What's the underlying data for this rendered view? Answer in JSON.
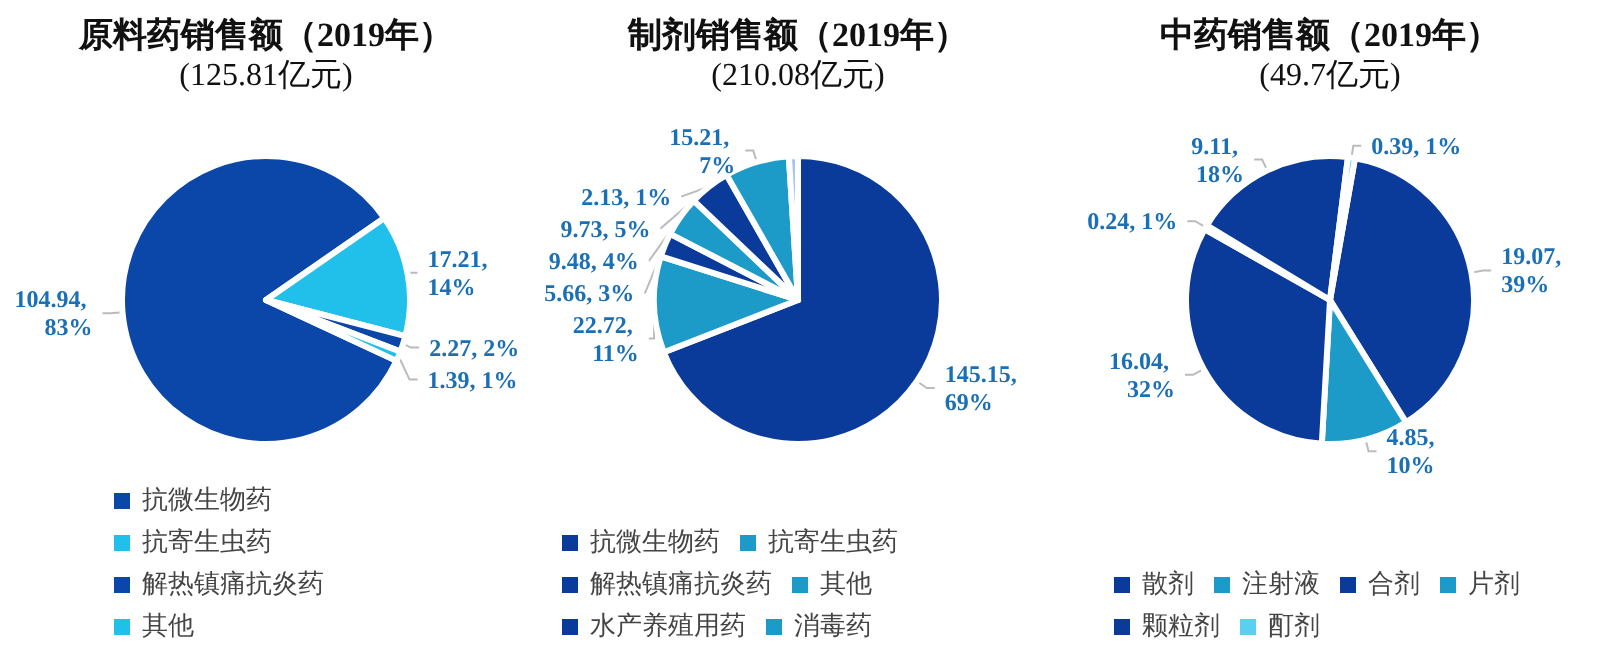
{
  "chart_data": [
    {
      "type": "pie",
      "title": "原料药销售额（2019年）",
      "subtitle": "(125.81亿元)",
      "categories": [
        "抗微生物药",
        "抗寄生虫药",
        "解热镇痛抗炎药",
        "其他"
      ],
      "values": [
        104.94,
        17.21,
        2.27,
        1.39
      ],
      "colors": [
        "#0b47a8",
        "#21c0ea",
        "#0b47a8",
        "#21c0ea"
      ],
      "value_labels": [
        "104.94, 83%",
        "17.21, 14%",
        "2.27, 2%",
        "1.39, 1%"
      ],
      "legend": "bottom"
    },
    {
      "type": "pie",
      "title": "制剂销售额（2019年）",
      "subtitle": "(210.08亿元)",
      "categories": [
        "抗微生物药",
        "抗寄生虫药",
        "解热镇痛抗炎药",
        "其他",
        "水产养殖用药",
        "消毒药",
        null
      ],
      "values": [
        145.15,
        22.72,
        5.66,
        9.48,
        9.73,
        15.21,
        2.13
      ],
      "colors": [
        "#0a3a9a",
        "#1d9bc8",
        "#0a3a9a",
        "#1d9bc8",
        "#0a3a9a",
        "#1d9bc8",
        "#a9c4ea"
      ],
      "value_labels": [
        "145.15, 69%",
        "22.72, 11%",
        "5.66, 3%",
        "9.48, 4%",
        "9.73, 5%",
        "15.21, 7%",
        "2.13, 1%"
      ],
      "legend": "bottom"
    },
    {
      "type": "pie",
      "title": "中药销售额（2019年）",
      "subtitle": "(49.7亿元)",
      "categories": [
        "散剂",
        "注射液",
        "合剂",
        "片剂",
        "颗粒剂",
        "酊剂"
      ],
      "values": [
        19.07,
        4.85,
        16.04,
        0.24,
        9.11,
        0.39
      ],
      "colors": [
        "#0a3a9a",
        "#1d9bc8",
        "#0a3a9a",
        "#1d9bc8",
        "#0a3a9a",
        "#5ad0f0"
      ],
      "value_labels": [
        "19.07, 39%",
        "4.85, 10%",
        "16.04, 32%",
        "0.24, 1%",
        "9.11, 18%",
        "0.39, 1%"
      ],
      "legend": "bottom"
    }
  ]
}
